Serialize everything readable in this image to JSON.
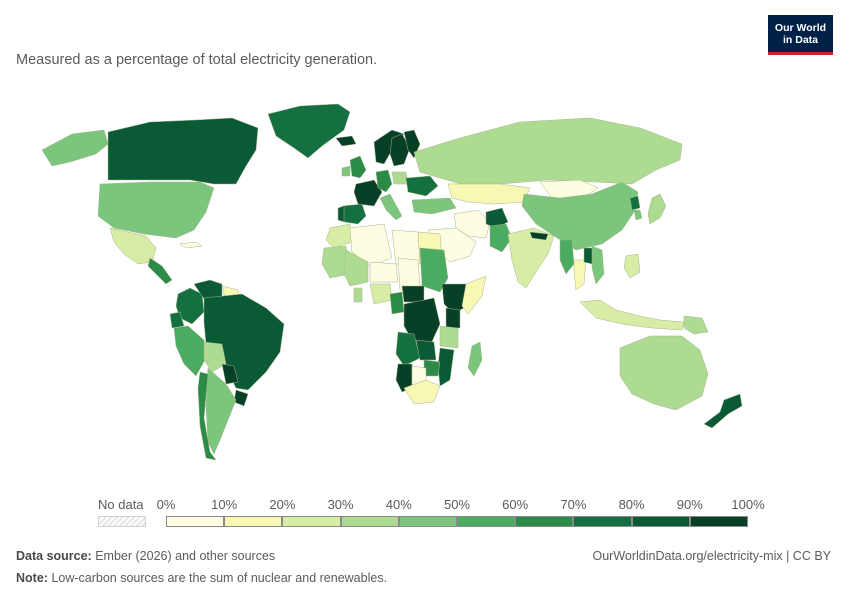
{
  "subtitle": "Measured as a percentage of total electricity generation.",
  "logo": {
    "line1": "Our World",
    "line2": "in Data"
  },
  "legend": {
    "no_data_label": "No data",
    "ticks": [
      "0%",
      "10%",
      "20%",
      "30%",
      "40%",
      "50%",
      "60%",
      "70%",
      "80%",
      "90%",
      "100%"
    ],
    "colors": [
      "#fefde2",
      "#f6f8b4",
      "#d7eca5",
      "#aedb92",
      "#7cc57c",
      "#4bab61",
      "#2c8b48",
      "#147041",
      "#0b5a36",
      "#083f27"
    ]
  },
  "footer": {
    "source_label": "Data source:",
    "source_text": "Ember (2026) and other sources",
    "note_label": "Note:",
    "note_text": "Low-carbon sources are the sum of nuclear and renewables.",
    "url": "OurWorldinData.org/electricity-mix | CC BY"
  },
  "map_data": {
    "metric": "Share of electricity from low-carbon sources (%)",
    "regions": [
      {
        "name": "Greenland",
        "value": 75
      },
      {
        "name": "Canada",
        "value": 82
      },
      {
        "name": "United States",
        "value": 42
      },
      {
        "name": "Mexico",
        "value": 25
      },
      {
        "name": "Central America",
        "value": 65
      },
      {
        "name": "Cuba",
        "value": 5
      },
      {
        "name": "Colombia",
        "value": 72
      },
      {
        "name": "Venezuela",
        "value": 85
      },
      {
        "name": "Guyana",
        "value": 15
      },
      {
        "name": "Peru",
        "value": 58
      },
      {
        "name": "Ecuador",
        "value": 75
      },
      {
        "name": "Brazil",
        "value": 89
      },
      {
        "name": "Bolivia",
        "value": 35
      },
      {
        "name": "Paraguay",
        "value": 100
      },
      {
        "name": "Uruguay",
        "value": 95
      },
      {
        "name": "Argentina",
        "value": 42
      },
      {
        "name": "Chile",
        "value": 65
      },
      {
        "name": "Iceland",
        "value": 100
      },
      {
        "name": "Norway",
        "value": 98
      },
      {
        "name": "Sweden",
        "value": 98
      },
      {
        "name": "Finland",
        "value": 93
      },
      {
        "name": "United Kingdom",
        "value": 65
      },
      {
        "name": "Ireland",
        "value": 40
      },
      {
        "name": "France",
        "value": 95
      },
      {
        "name": "Spain",
        "value": 75
      },
      {
        "name": "Portugal",
        "value": 85
      },
      {
        "name": "Germany",
        "value": 60
      },
      {
        "name": "Poland",
        "value": 30
      },
      {
        "name": "Italy",
        "value": 48
      },
      {
        "name": "Ukraine",
        "value": 75
      },
      {
        "name": "Turkey",
        "value": 42
      },
      {
        "name": "Russia",
        "value": 38
      },
      {
        "name": "Kazakhstan",
        "value": 12
      },
      {
        "name": "Mongolia",
        "value": 8
      },
      {
        "name": "China",
        "value": 40
      },
      {
        "name": "Japan",
        "value": 30
      },
      {
        "name": "South Korea",
        "value": 40
      },
      {
        "name": "North Korea",
        "value": 75
      },
      {
        "name": "Iran",
        "value": 8
      },
      {
        "name": "Saudi Arabia",
        "value": 2
      },
      {
        "name": "Pakistan",
        "value": 55
      },
      {
        "name": "Afghanistan",
        "value": 80
      },
      {
        "name": "India",
        "value": 25
      },
      {
        "name": "Nepal",
        "value": 100
      },
      {
        "name": "Myanmar",
        "value": 55
      },
      {
        "name": "Laos",
        "value": 85
      },
      {
        "name": "Thailand",
        "value": 18
      },
      {
        "name": "Vietnam",
        "value": 42
      },
      {
        "name": "Indonesia",
        "value": 20
      },
      {
        "name": "Philippines",
        "value": 25
      },
      {
        "name": "Papua New Guinea",
        "value": 35
      },
      {
        "name": "Australia",
        "value": 38
      },
      {
        "name": "New Zealand",
        "value": 88
      },
      {
        "name": "Morocco",
        "value": 25
      },
      {
        "name": "Algeria",
        "value": 2
      },
      {
        "name": "Libya",
        "value": 1
      },
      {
        "name": "Egypt",
        "value": 12
      },
      {
        "name": "Mauritania",
        "value": 30
      },
      {
        "name": "Mali",
        "value": 35
      },
      {
        "name": "Niger",
        "value": 5
      },
      {
        "name": "Chad",
        "value": 2
      },
      {
        "name": "Sudan",
        "value": 58
      },
      {
        "name": "Ethiopia",
        "value": 100
      },
      {
        "name": "Somalia",
        "value": 10
      },
      {
        "name": "Kenya",
        "value": 90
      },
      {
        "name": "Ghana",
        "value": 38
      },
      {
        "name": "Nigeria",
        "value": 22
      },
      {
        "name": "Cameroon",
        "value": 65
      },
      {
        "name": "Central African Republic",
        "value": 95
      },
      {
        "name": "DR Congo",
        "value": 99
      },
      {
        "name": "Angola",
        "value": 75
      },
      {
        "name": "Namibia",
        "value": 95
      },
      {
        "name": "Zambia",
        "value": 85
      },
      {
        "name": "Tanzania",
        "value": 38
      },
      {
        "name": "Mozambique",
        "value": 80
      },
      {
        "name": "Zimbabwe",
        "value": 62
      },
      {
        "name": "Botswana",
        "value": 5
      },
      {
        "name": "South Africa",
        "value": 15
      },
      {
        "name": "Madagascar",
        "value": 42
      }
    ]
  }
}
